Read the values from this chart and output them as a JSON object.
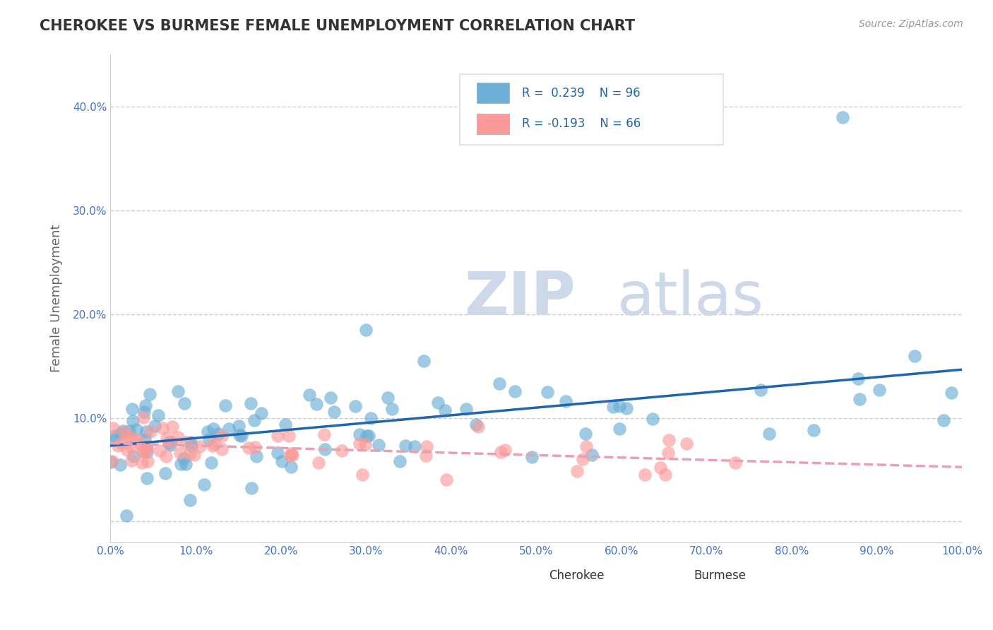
{
  "title": "CHEROKEE VS BURMESE FEMALE UNEMPLOYMENT CORRELATION CHART",
  "source_text": "Source: ZipAtlas.com",
  "ylabel": "Female Unemployment",
  "xlim": [
    0.0,
    1.0
  ],
  "ylim": [
    -0.02,
    0.45
  ],
  "xticks": [
    0.0,
    0.1,
    0.2,
    0.3,
    0.4,
    0.5,
    0.6,
    0.7,
    0.8,
    0.9,
    1.0
  ],
  "xticklabels": [
    "0.0%",
    "10.0%",
    "20.0%",
    "30.0%",
    "40.0%",
    "50.0%",
    "60.0%",
    "70.0%",
    "80.0%",
    "90.0%",
    "100.0%"
  ],
  "yticks": [
    0.0,
    0.1,
    0.2,
    0.3,
    0.4
  ],
  "yticklabels": [
    "",
    "10.0%",
    "20.0%",
    "30.0%",
    "40.0%"
  ],
  "cherokee_color": "#6baed6",
  "burmese_color": "#fb9a99",
  "cherokee_line_color": "#2166ac",
  "burmese_line_color": "#e8a0b0",
  "cherokee_R": 0.239,
  "cherokee_N": 96,
  "burmese_R": -0.193,
  "burmese_N": 66,
  "watermark_zip": "ZIP",
  "watermark_atlas": "atlas",
  "watermark_color": "#cdd8e8",
  "background_color": "#ffffff",
  "grid_color": "#cccccc",
  "title_color": "#333333",
  "axis_label_color": "#666666",
  "tick_label_color": "#4472c4",
  "legend_label_cherokee": "Cherokee",
  "legend_label_burmese": "Burmese"
}
